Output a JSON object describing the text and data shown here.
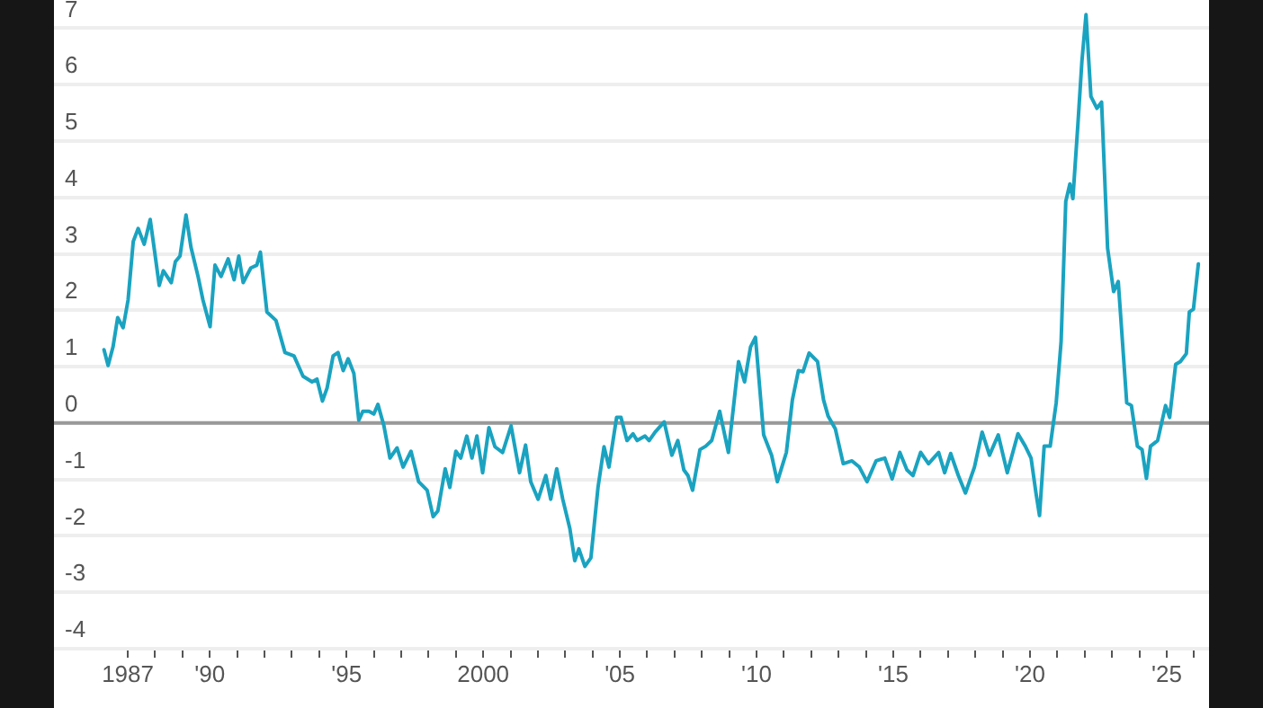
{
  "chart_data": {
    "type": "line",
    "xlim": [
      1984.3,
      2026.55
    ],
    "ylim": [
      -4,
      7.5
    ],
    "xticks": [
      {
        "value": 1987,
        "label": "1987"
      },
      {
        "value": 1988,
        "label": null
      },
      {
        "value": 1989,
        "label": null
      },
      {
        "value": 1990,
        "label": "'90"
      },
      {
        "value": 1991,
        "label": null
      },
      {
        "value": 1992,
        "label": null
      },
      {
        "value": 1993,
        "label": null
      },
      {
        "value": 1994,
        "label": null
      },
      {
        "value": 1995,
        "label": "'95"
      },
      {
        "value": 1996,
        "label": null
      },
      {
        "value": 1997,
        "label": null
      },
      {
        "value": 1998,
        "label": null
      },
      {
        "value": 1999,
        "label": null
      },
      {
        "value": 2000,
        "label": "2000"
      },
      {
        "value": 2001,
        "label": null
      },
      {
        "value": 2002,
        "label": null
      },
      {
        "value": 2003,
        "label": null
      },
      {
        "value": 2004,
        "label": null
      },
      {
        "value": 2005,
        "label": "'05"
      },
      {
        "value": 2006,
        "label": null
      },
      {
        "value": 2007,
        "label": null
      },
      {
        "value": 2008,
        "label": null
      },
      {
        "value": 2009,
        "label": null
      },
      {
        "value": 2010,
        "label": "'10"
      },
      {
        "value": 2011,
        "label": null
      },
      {
        "value": 2012,
        "label": null
      },
      {
        "value": 2013,
        "label": null
      },
      {
        "value": 2014,
        "label": null
      },
      {
        "value": 2015,
        "label": "'15"
      },
      {
        "value": 2016,
        "label": null
      },
      {
        "value": 2017,
        "label": null
      },
      {
        "value": 2018,
        "label": null
      },
      {
        "value": 2019,
        "label": null
      },
      {
        "value": 2020,
        "label": "'20"
      },
      {
        "value": 2021,
        "label": null
      },
      {
        "value": 2022,
        "label": null
      },
      {
        "value": 2023,
        "label": null
      },
      {
        "value": 2024,
        "label": null
      },
      {
        "value": 2025,
        "label": "'25"
      },
      {
        "value": 2026,
        "label": null
      }
    ],
    "yticks": [
      -4,
      -3,
      -2,
      -1,
      0,
      1,
      2,
      3,
      4,
      5,
      6,
      7
    ],
    "grid": "y",
    "legend": false,
    "marker": "none",
    "line_style": "solid",
    "ref_lines": [
      {
        "axis": "y",
        "value": 0,
        "label": null,
        "color": "#999999"
      }
    ],
    "x": [
      1986.13,
      1986.28,
      1986.46,
      1986.63,
      1986.83,
      1987.01,
      1987.2,
      1987.38,
      1987.6,
      1987.82,
      1987.99,
      1988.15,
      1988.3,
      1988.59,
      1988.74,
      1988.91,
      1989.13,
      1989.31,
      1989.57,
      1989.75,
      1990.01,
      1990.19,
      1990.41,
      1990.67,
      1990.89,
      1991.06,
      1991.22,
      1991.5,
      1991.72,
      1991.85,
      1992.09,
      1992.42,
      1992.75,
      1993.08,
      1993.41,
      1993.74,
      1993.92,
      1994.12,
      1994.29,
      1994.51,
      1994.69,
      1994.88,
      1995.06,
      1995.27,
      1995.45,
      1995.6,
      1995.82,
      1996.0,
      1996.15,
      1996.37,
      1996.59,
      1996.85,
      1997.07,
      1997.36,
      1997.64,
      1997.95,
      1998.17,
      1998.34,
      1998.61,
      1998.78,
      1999.0,
      1999.18,
      1999.4,
      1999.59,
      1999.77,
      1999.98,
      2000.21,
      2000.43,
      2000.71,
      2001.02,
      2001.33,
      2001.55,
      2001.74,
      2002.01,
      2002.29,
      2002.47,
      2002.69,
      2002.91,
      2003.17,
      2003.35,
      2003.5,
      2003.72,
      2003.94,
      2004.2,
      2004.42,
      2004.6,
      2004.88,
      2005.04,
      2005.26,
      2005.48,
      2005.63,
      2005.92,
      2006.07,
      2006.29,
      2006.62,
      2006.9,
      2007.12,
      2007.34,
      2007.49,
      2007.66,
      2007.93,
      2008.14,
      2008.36,
      2008.65,
      2008.97,
      2009.34,
      2009.56,
      2009.78,
      2009.96,
      2010.26,
      2010.55,
      2010.76,
      2011.09,
      2011.31,
      2011.53,
      2011.7,
      2011.92,
      2012.23,
      2012.45,
      2012.62,
      2012.88,
      2013.17,
      2013.49,
      2013.76,
      2014.04,
      2014.37,
      2014.69,
      2014.96,
      2015.24,
      2015.5,
      2015.72,
      2016.0,
      2016.29,
      2016.66,
      2016.88,
      2017.1,
      2017.38,
      2017.64,
      2017.97,
      2018.25,
      2018.52,
      2018.84,
      2019.17,
      2019.56,
      2019.83,
      2020.04,
      2020.22,
      2020.35,
      2020.52,
      2020.74,
      2020.96,
      2021.14,
      2021.31,
      2021.46,
      2021.57,
      2021.75,
      2021.9,
      2022.05,
      2022.23,
      2022.45,
      2022.62,
      2022.84,
      2023.06,
      2023.23,
      2023.54,
      2023.71,
      2023.93,
      2024.1,
      2024.26,
      2024.41,
      2024.67,
      2024.96,
      2025.11,
      2025.33,
      2025.5,
      2025.72,
      2025.83,
      2025.98,
      2026.16
    ],
    "series": [
      {
        "color": "#1aa3c0",
        "values": [
          1.3,
          1.02,
          1.35,
          1.87,
          1.69,
          2.18,
          3.22,
          3.45,
          3.17,
          3.61,
          3.01,
          2.44,
          2.7,
          2.49,
          2.86,
          2.96,
          3.69,
          3.12,
          2.6,
          2.18,
          1.71,
          2.8,
          2.6,
          2.91,
          2.54,
          2.96,
          2.49,
          2.75,
          2.8,
          3.03,
          1.97,
          1.82,
          1.25,
          1.19,
          0.83,
          0.73,
          0.78,
          0.39,
          0.62,
          1.19,
          1.25,
          0.93,
          1.14,
          0.88,
          0.05,
          0.21,
          0.21,
          0.16,
          0.33,
          -0.05,
          -0.62,
          -0.44,
          -0.78,
          -0.5,
          -1.04,
          -1.19,
          -1.66,
          -1.56,
          -0.81,
          -1.14,
          -0.5,
          -0.62,
          -0.23,
          -0.62,
          -0.23,
          -0.88,
          -0.08,
          -0.42,
          -0.52,
          -0.05,
          -0.88,
          -0.39,
          -1.04,
          -1.35,
          -0.93,
          -1.35,
          -0.81,
          -1.35,
          -1.87,
          -2.44,
          -2.23,
          -2.54,
          -2.39,
          -1.14,
          -0.42,
          -0.78,
          0.1,
          0.1,
          -0.31,
          -0.19,
          -0.31,
          -0.23,
          -0.31,
          -0.16,
          0.02,
          -0.57,
          -0.31,
          -0.83,
          -0.93,
          -1.19,
          -0.47,
          -0.41,
          -0.31,
          0.21,
          -0.52,
          1.09,
          0.73,
          1.35,
          1.52,
          -0.21,
          -0.57,
          -1.04,
          -0.52,
          0.41,
          0.93,
          0.91,
          1.24,
          1.09,
          0.41,
          0.12,
          -0.1,
          -0.72,
          -0.67,
          -0.78,
          -1.04,
          -0.67,
          -0.62,
          -0.99,
          -0.52,
          -0.83,
          -0.93,
          -0.52,
          -0.72,
          -0.52,
          -0.88,
          -0.54,
          -0.93,
          -1.24,
          -0.78,
          -0.16,
          -0.57,
          -0.21,
          -0.88,
          -0.19,
          -0.41,
          -0.62,
          -1.24,
          -1.64,
          -0.41,
          -0.41,
          0.36,
          1.45,
          3.93,
          4.24,
          3.98,
          5.27,
          6.41,
          7.24,
          5.79,
          5.58,
          5.69,
          3.1,
          2.33,
          2.51,
          0.36,
          0.31,
          -0.41,
          -0.47,
          -0.98,
          -0.41,
          -0.31,
          0.31,
          0.1,
          1.04,
          1.09,
          1.23,
          1.97,
          2.02,
          2.82
        ]
      }
    ]
  }
}
